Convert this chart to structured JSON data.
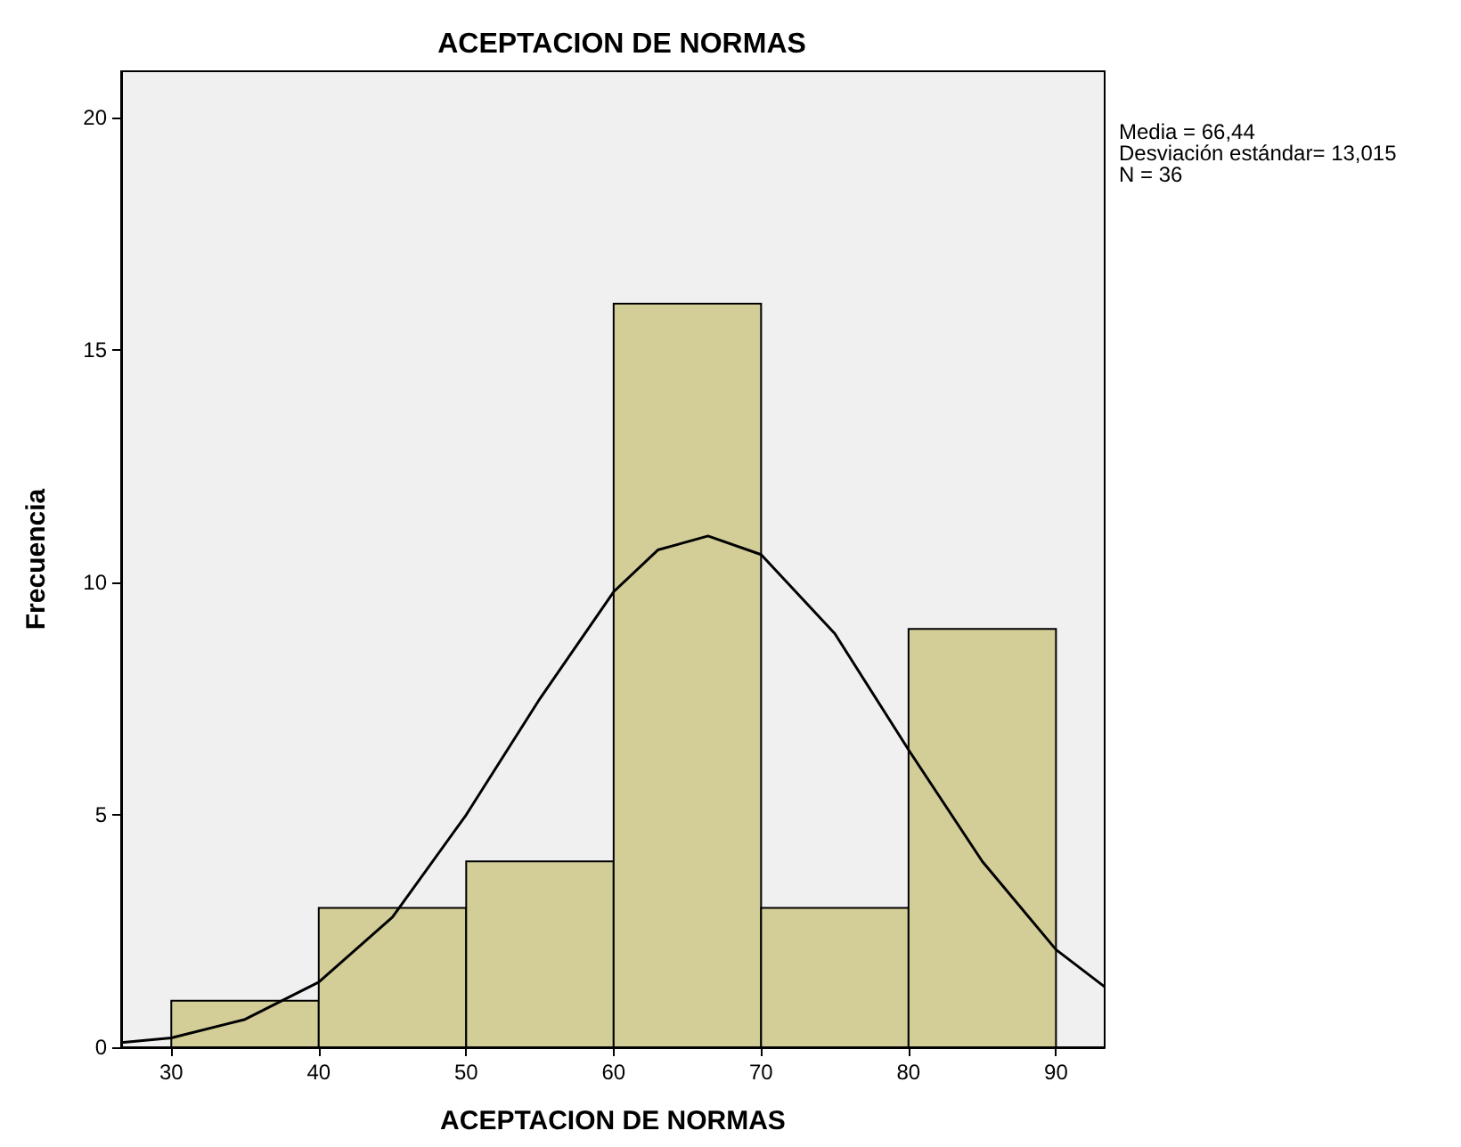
{
  "chart_data": {
    "type": "histogram",
    "title": "ACEPTACION DE NORMAS",
    "xlabel": "ACEPTACION DE NORMAS",
    "ylabel": "Frecuencia",
    "bins": [
      30,
      40,
      50,
      60,
      70,
      80,
      90
    ],
    "values": [
      1,
      3,
      4,
      16,
      3,
      9
    ],
    "color": "#d3ce97",
    "series": [
      {
        "type": "line",
        "color": "#000000",
        "x": [
          26.6,
          30,
          35,
          40,
          45,
          50,
          55,
          60,
          63,
          66.4,
          70,
          75,
          80,
          85,
          90,
          93.3
        ],
        "values": [
          0.1,
          0.2,
          0.6,
          1.4,
          2.8,
          5.0,
          7.5,
          9.8,
          10.7,
          11.0,
          10.6,
          8.9,
          6.4,
          4.0,
          2.1,
          1.3
        ]
      }
    ],
    "xlim": [
      26.6,
      93.3
    ],
    "xticks": [
      30,
      40,
      50,
      60,
      70,
      80,
      90
    ],
    "ylim": [
      0,
      21
    ],
    "yticks": [
      0,
      5,
      10,
      15,
      20
    ],
    "grid": false,
    "marker": "none",
    "line_style": "solid",
    "annotations": [
      "Media = 66,44",
      "Desviación estándar= 13,015",
      "N = 36"
    ]
  }
}
